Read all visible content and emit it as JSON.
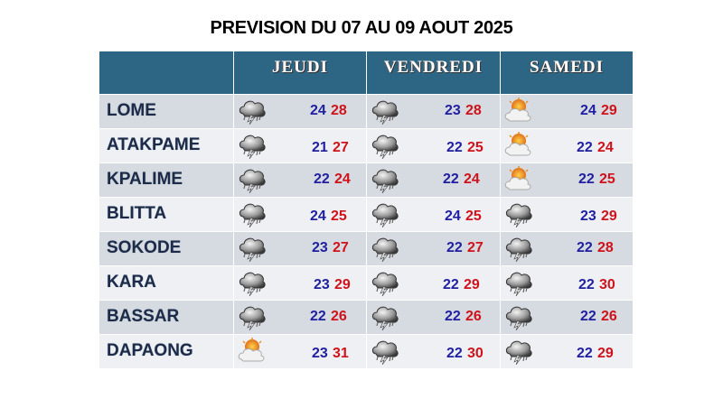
{
  "title": "PREVISION DU 07 AU 09 AOUT 2025",
  "table": {
    "header": [
      "JEUDI",
      "VENDREDI",
      "SAMEDI"
    ],
    "rows": [
      {
        "city": "LOME",
        "days": [
          {
            "min": 24,
            "max": 28
          },
          {
            "min": 23,
            "max": 28
          },
          {
            "min": 24,
            "max": 29
          }
        ]
      },
      {
        "city": "ATAKPAME",
        "days": [
          {
            "min": 21,
            "max": 27
          },
          {
            "min": 22,
            "max": 25
          },
          {
            "min": 22,
            "max": 24
          }
        ]
      },
      {
        "city": "KPALIME",
        "days": [
          {
            "min": 22,
            "max": 24
          },
          {
            "min": 22,
            "max": 24
          },
          {
            "min": 22,
            "max": 25
          }
        ]
      },
      {
        "city": "BLITTA",
        "days": [
          {
            "min": 24,
            "max": 25
          },
          {
            "min": 24,
            "max": 25
          },
          {
            "min": 23,
            "max": 29
          }
        ]
      },
      {
        "city": "SOKODE",
        "days": [
          {
            "min": 23,
            "max": 27
          },
          {
            "min": 22,
            "max": 27
          },
          {
            "min": 22,
            "max": 28
          }
        ]
      },
      {
        "city": "KARA",
        "days": [
          {
            "min": 23,
            "max": 29
          },
          {
            "min": 22,
            "max": 29
          },
          {
            "min": 22,
            "max": 30
          }
        ]
      },
      {
        "city": "BASSAR",
        "days": [
          {
            "min": 22,
            "max": 26
          },
          {
            "min": 22,
            "max": 26
          },
          {
            "min": 22,
            "max": 26
          }
        ]
      },
      {
        "city": "DAPAONG",
        "days": [
          {
            "min": 23,
            "max": 31
          },
          {
            "min": 22,
            "max": 30
          },
          {
            "min": 22,
            "max": 29
          }
        ]
      }
    ]
  }
}
